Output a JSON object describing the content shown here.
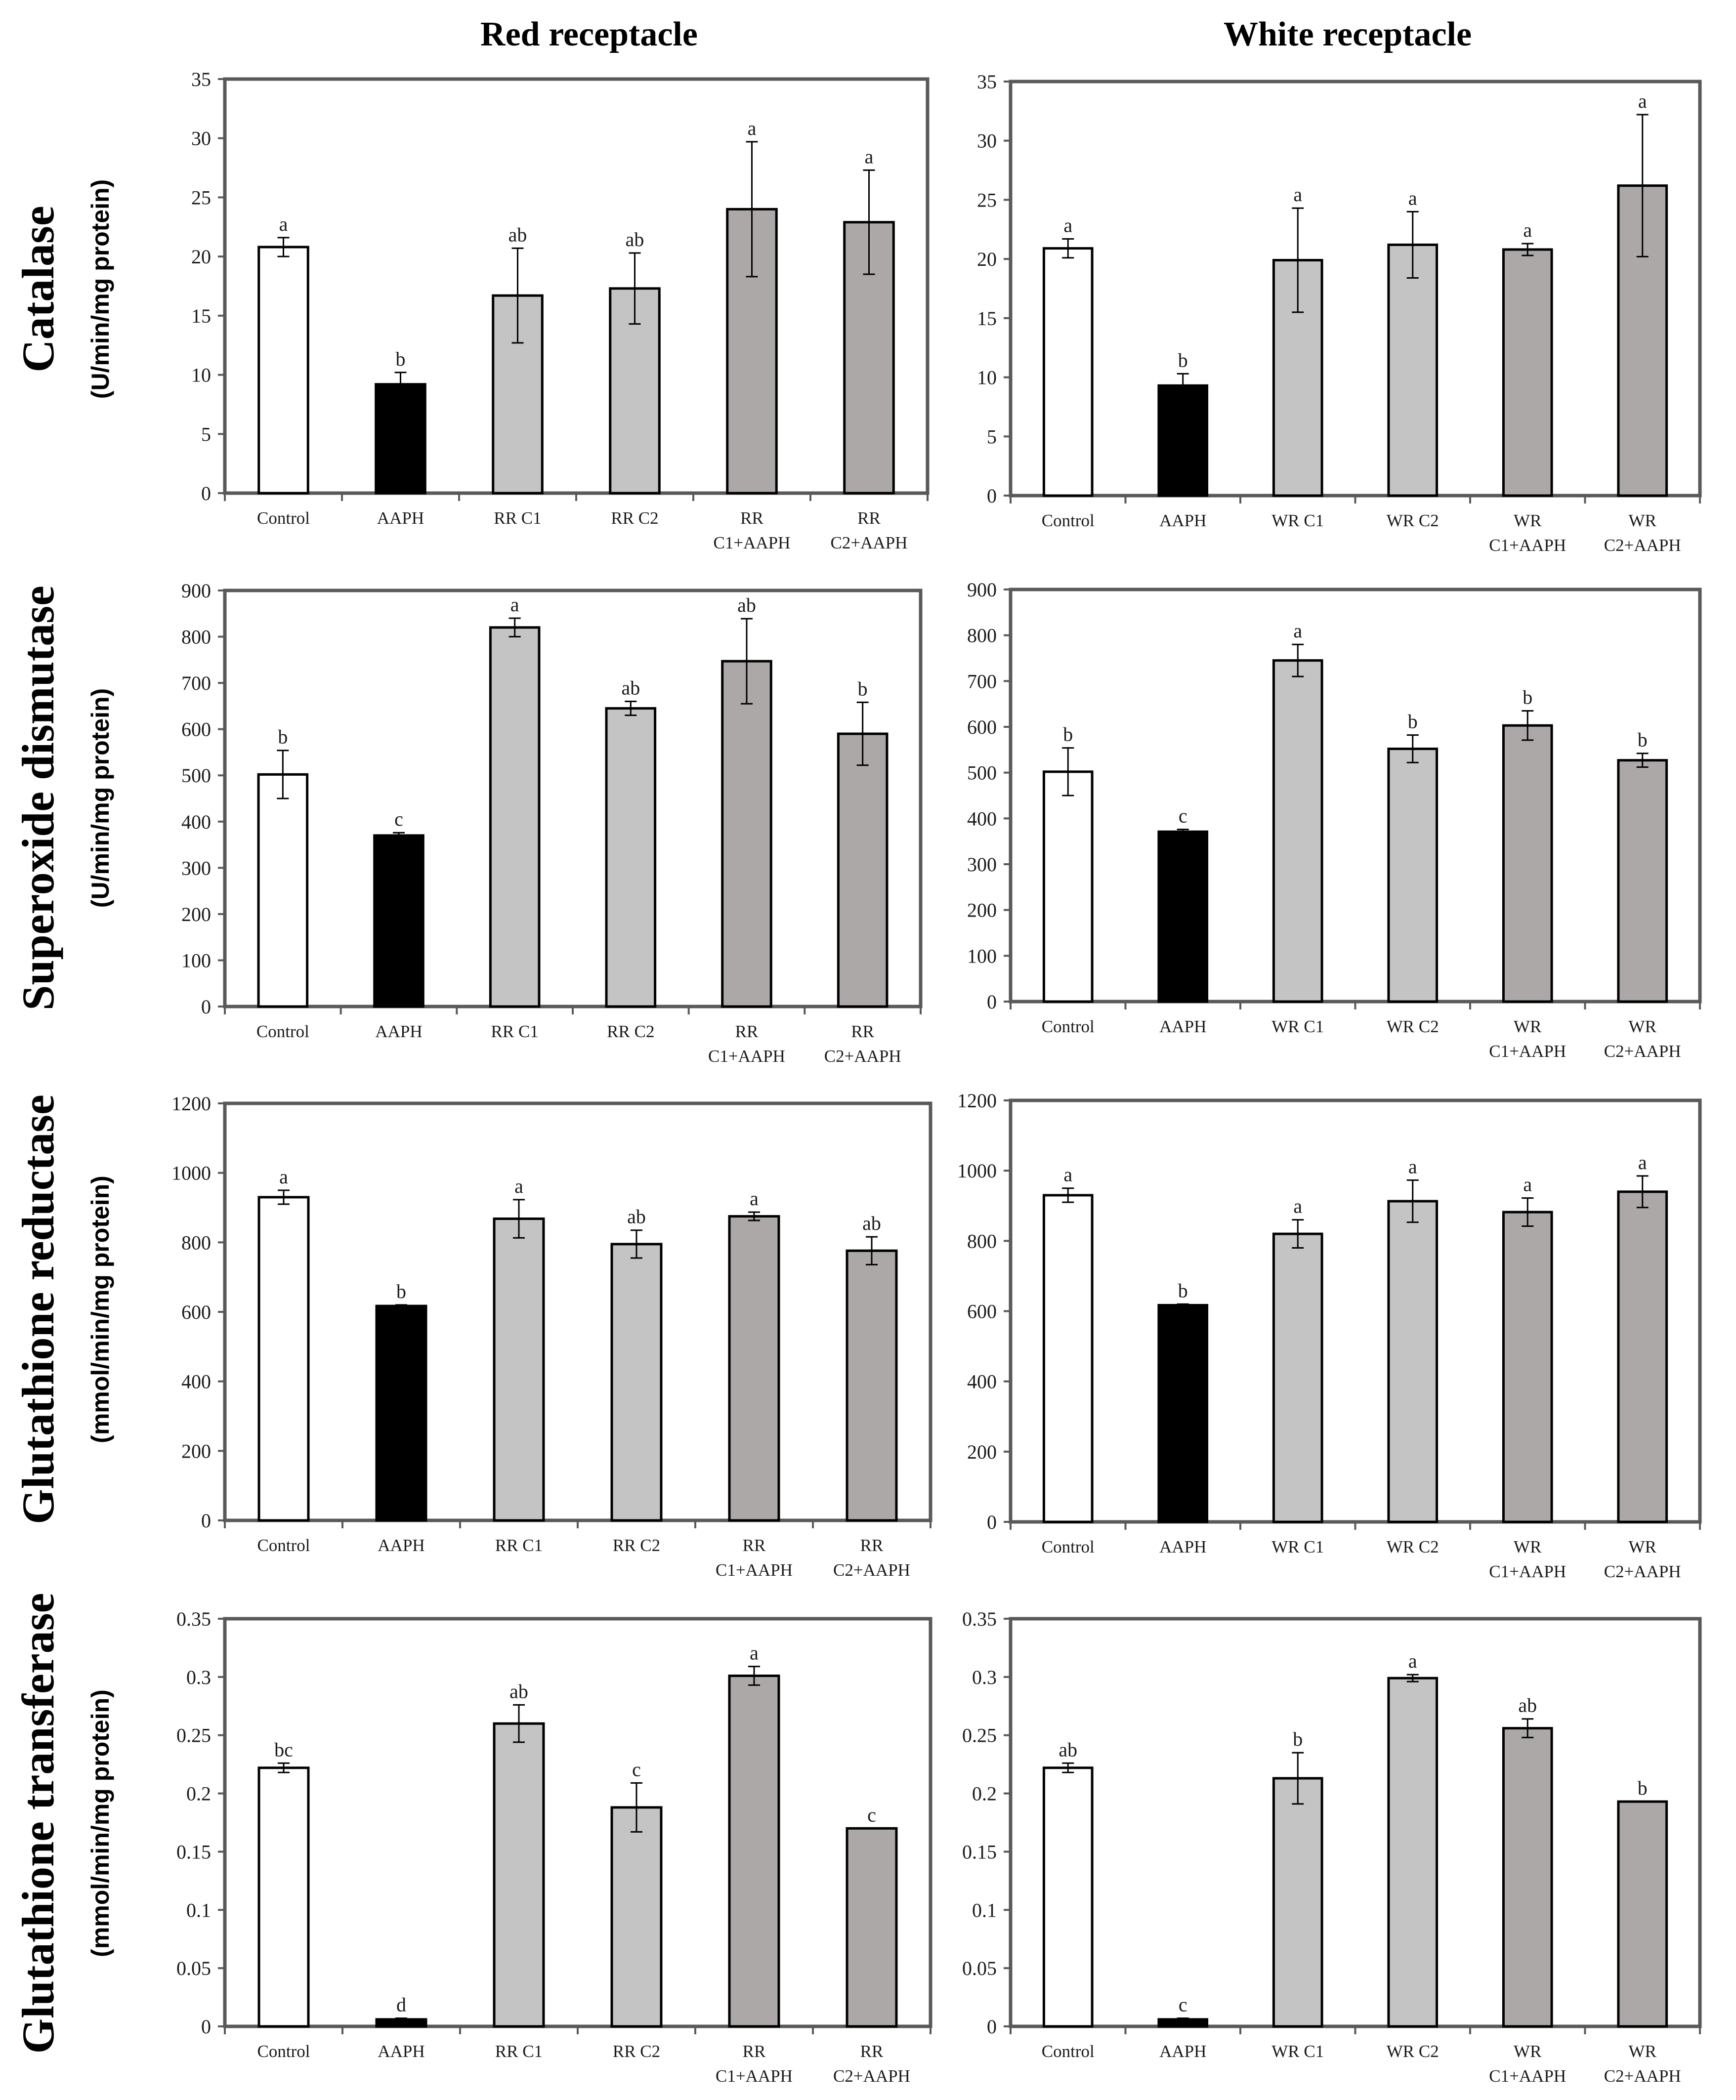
{
  "column_titles": [
    "Red receptacle",
    "White receptacle"
  ],
  "row_titles": [
    {
      "title": "Catalase",
      "unit": "(U/min/mg protein)"
    },
    {
      "title": "Superoxide dismutase",
      "unit": "(U/min/mg protein)"
    },
    {
      "title": "Glutathione reductase",
      "unit": "(mmol/min/mg protein)"
    },
    {
      "title": "Glutathione transferase",
      "unit": "(mmol/min/mg protein)"
    }
  ],
  "colors": {
    "control": "#ffffff",
    "aaph": "#000000",
    "extract": "#c4c4c4",
    "extract_aaph": "#aca8a8",
    "axis": "#595959",
    "text": "#1a1a1a"
  },
  "chart_data": [
    {
      "type": "bar",
      "panel": "Red receptacle - Catalase",
      "categories": [
        [
          "Control"
        ],
        [
          "AAPH"
        ],
        [
          "RR C1"
        ],
        [
          "RR C2"
        ],
        [
          "RR",
          "C1+AAPH"
        ],
        [
          "RR",
          "C2+AAPH"
        ]
      ],
      "values": [
        20.8,
        9.2,
        16.7,
        17.3,
        24.0,
        22.9
      ],
      "errors": [
        0.8,
        1.0,
        4.0,
        3.0,
        5.7,
        4.4
      ],
      "labels": [
        "a",
        "b",
        "ab",
        "ab",
        "a",
        "a"
      ],
      "ylim": [
        0,
        35
      ],
      "yticks": [
        0,
        5,
        10,
        15,
        20,
        25,
        30,
        35
      ],
      "ytick_labels": [
        "0",
        "5",
        "10",
        "15",
        "20",
        "25",
        "30",
        "35"
      ]
    },
    {
      "type": "bar",
      "panel": "White receptacle - Catalase",
      "categories": [
        [
          "Control"
        ],
        [
          "AAPH"
        ],
        [
          "WR C1"
        ],
        [
          "WR C2"
        ],
        [
          "WR",
          "C1+AAPH"
        ],
        [
          "WR",
          "C2+AAPH"
        ]
      ],
      "values": [
        20.9,
        9.3,
        19.9,
        21.2,
        20.8,
        26.2
      ],
      "errors": [
        0.8,
        1.0,
        4.4,
        2.8,
        0.5,
        6.0
      ],
      "labels": [
        "a",
        "b",
        "a",
        "a",
        "a",
        "a"
      ],
      "ylim": [
        0,
        35
      ],
      "yticks": [
        0,
        5,
        10,
        15,
        20,
        25,
        30,
        35
      ],
      "ytick_labels": [
        "0",
        "5",
        "10",
        "15",
        "20",
        "25",
        "30",
        "35"
      ]
    },
    {
      "type": "bar",
      "panel": "Red receptacle - Superoxide dismutase",
      "categories": [
        [
          "Control"
        ],
        [
          "AAPH"
        ],
        [
          "RR C1"
        ],
        [
          "RR C2"
        ],
        [
          "RR",
          "C1+AAPH"
        ],
        [
          "RR",
          "C2+AAPH"
        ]
      ],
      "values": [
        502,
        370,
        820,
        645,
        747,
        590
      ],
      "errors": [
        52,
        6,
        20,
        15,
        92,
        68
      ],
      "labels": [
        "b",
        "c",
        "a",
        "ab",
        "ab",
        "b"
      ],
      "ylim": [
        0,
        900
      ],
      "yticks": [
        0,
        100,
        200,
        300,
        400,
        500,
        600,
        700,
        800,
        900
      ],
      "ytick_labels": [
        "0",
        "100",
        "200",
        "300",
        "400",
        "500",
        "600",
        "700",
        "800",
        "900"
      ]
    },
    {
      "type": "bar",
      "panel": "White receptacle - Superoxide dismutase",
      "categories": [
        [
          "Control"
        ],
        [
          "AAPH"
        ],
        [
          "WR C1"
        ],
        [
          "WR C2"
        ],
        [
          "WR",
          "C1+AAPH"
        ],
        [
          "WR",
          "C2+AAPH"
        ]
      ],
      "values": [
        502,
        371,
        745,
        552,
        603,
        527
      ],
      "errors": [
        52,
        5,
        35,
        30,
        32,
        15
      ],
      "labels": [
        "b",
        "c",
        "a",
        "b",
        "b",
        "b"
      ],
      "ylim": [
        0,
        900
      ],
      "yticks": [
        0,
        100,
        200,
        300,
        400,
        500,
        600,
        700,
        800,
        900
      ],
      "ytick_labels": [
        "0",
        "100",
        "200",
        "300",
        "400",
        "500",
        "600",
        "700",
        "800",
        "900"
      ]
    },
    {
      "type": "bar",
      "panel": "Red receptacle - Glutathione reductase",
      "categories": [
        [
          "Control"
        ],
        [
          "AAPH"
        ],
        [
          "RR C1"
        ],
        [
          "RR C2"
        ],
        [
          "RR",
          "C1+AAPH"
        ],
        [
          "RR",
          "C2+AAPH"
        ]
      ],
      "values": [
        930,
        617,
        868,
        795,
        875,
        776
      ],
      "errors": [
        20,
        3,
        55,
        40,
        12,
        40
      ],
      "labels": [
        "a",
        "b",
        "a",
        "ab",
        "a",
        "ab"
      ],
      "ylim": [
        0,
        1200
      ],
      "yticks": [
        0,
        200,
        400,
        600,
        800,
        1000,
        1200
      ],
      "ytick_labels": [
        "0",
        "200",
        "400",
        "600",
        "800",
        "1000",
        "1200"
      ]
    },
    {
      "type": "bar",
      "panel": "White receptacle - Glutathione reductase",
      "categories": [
        [
          "Control"
        ],
        [
          "AAPH"
        ],
        [
          "WR C1"
        ],
        [
          "WR C2"
        ],
        [
          "WR",
          "C1+AAPH"
        ],
        [
          "WR",
          "C2+AAPH"
        ]
      ],
      "values": [
        930,
        617,
        820,
        913,
        882,
        940
      ],
      "errors": [
        20,
        3,
        40,
        60,
        40,
        45
      ],
      "labels": [
        "a",
        "b",
        "a",
        "a",
        "a",
        "a"
      ],
      "ylim": [
        0,
        1200
      ],
      "yticks": [
        0,
        200,
        400,
        600,
        800,
        1000,
        1200
      ],
      "ytick_labels": [
        "0",
        "200",
        "400",
        "600",
        "800",
        "1000",
        "1200"
      ]
    },
    {
      "type": "bar",
      "panel": "Red receptacle - Glutathione transferase",
      "categories": [
        [
          "Control"
        ],
        [
          "AAPH"
        ],
        [
          "RR C1"
        ],
        [
          "RR C2"
        ],
        [
          "RR",
          "C1+AAPH"
        ],
        [
          "RR",
          "C2+AAPH"
        ]
      ],
      "values": [
        0.222,
        0.006,
        0.26,
        0.188,
        0.301,
        0.17
      ],
      "errors": [
        0.004,
        0.001,
        0.016,
        0.021,
        0.008,
        0.0
      ],
      "labels": [
        "bc",
        "d",
        "ab",
        "c",
        "a",
        "c"
      ],
      "ylim": [
        0,
        0.35
      ],
      "yticks": [
        0,
        0.05,
        0.1,
        0.15,
        0.2,
        0.25,
        0.3,
        0.35
      ],
      "ytick_labels": [
        "0",
        "0.05",
        "0.1",
        "0.15",
        "0.2",
        "0.25",
        "0.3",
        "0.35"
      ]
    },
    {
      "type": "bar",
      "panel": "White receptacle - Glutathione transferase",
      "categories": [
        [
          "Control"
        ],
        [
          "AAPH"
        ],
        [
          "WR C1"
        ],
        [
          "WR C2"
        ],
        [
          "WR",
          "C1+AAPH"
        ],
        [
          "WR",
          "C2+AAPH"
        ]
      ],
      "values": [
        0.222,
        0.006,
        0.213,
        0.299,
        0.256,
        0.193
      ],
      "errors": [
        0.004,
        0.001,
        0.022,
        0.003,
        0.008,
        0.0
      ],
      "labels": [
        "ab",
        "c",
        "b",
        "a",
        "ab",
        "b"
      ],
      "ylim": [
        0,
        0.35
      ],
      "yticks": [
        0,
        0.05,
        0.1,
        0.15,
        0.2,
        0.25,
        0.3,
        0.35
      ],
      "ytick_labels": [
        "0",
        "0.05",
        "0.1",
        "0.15",
        "0.2",
        "0.25",
        "0.3",
        "0.35"
      ]
    }
  ]
}
